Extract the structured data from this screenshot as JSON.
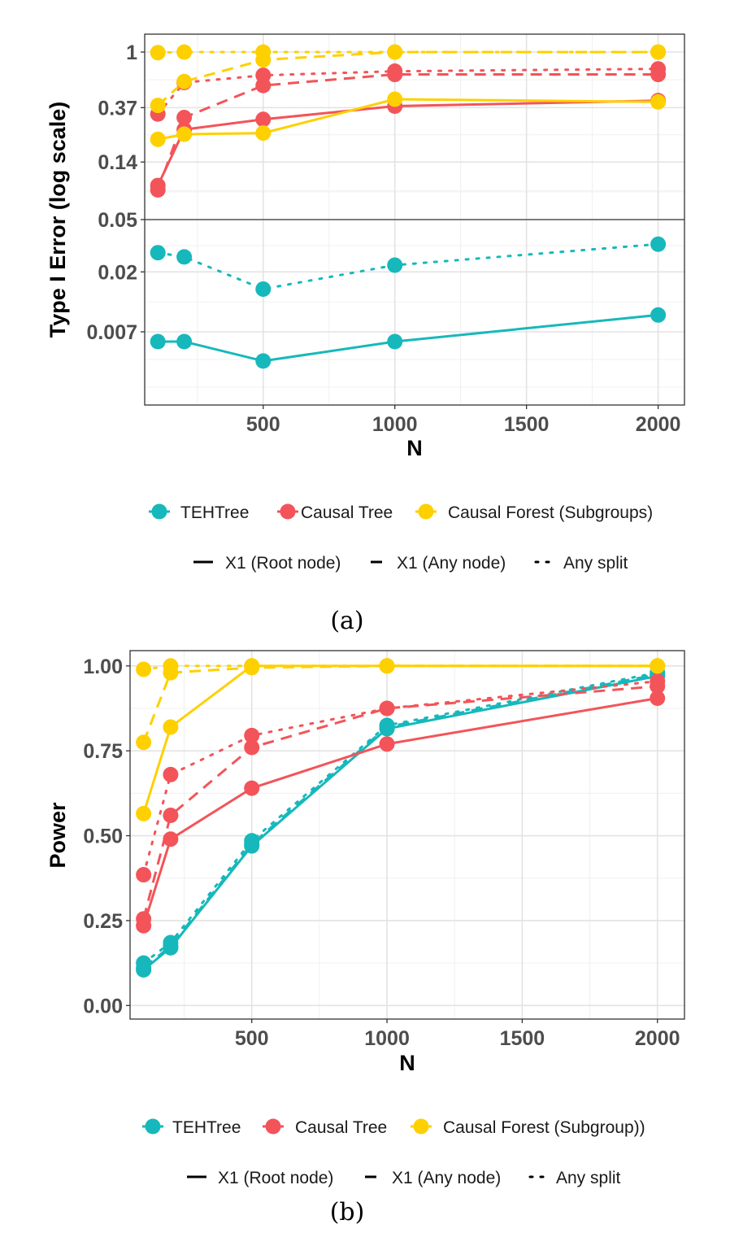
{
  "colors": {
    "TEHTree": "#17B8BC",
    "Causal Tree": "#F25459",
    "Causal Forest": "#FFD000"
  },
  "chart_data": [
    {
      "type": "line",
      "panel": "a",
      "caption": "(a)",
      "xlabel": "N",
      "ylabel": "Type I Error (log scale)",
      "y_scale": "log",
      "xlim": [
        50,
        2100
      ],
      "x_ticks": [
        500,
        1000,
        1500,
        2000
      ],
      "x_tick_labels": [
        "500",
        "1000",
        "1500",
        "2000"
      ],
      "y_ticks": [
        1,
        0.37,
        0.14,
        0.05,
        0.02,
        0.007
      ],
      "y_tick_labels": [
        "1",
        "0.37",
        "0.14",
        "0.05",
        "0.02",
        "0.007"
      ],
      "y_break": 0.05,
      "color_legend": [
        {
          "label": "TEHTree",
          "color_key": "TEHTree"
        },
        {
          "label": "Causal Tree",
          "color_key": "Causal Tree"
        },
        {
          "label": "Causal Forest (Subgroups)",
          "color_key": "Causal Forest"
        }
      ],
      "linetype_legend": [
        {
          "label": "X1 (Root node)",
          "style": "solid"
        },
        {
          "label": "X1 (Any node)",
          "style": "dashed"
        },
        {
          "label": "Any split",
          "style": "dotted"
        }
      ],
      "series": [
        {
          "method": "TEHTree",
          "style": "solid",
          "x": [
            100,
            200,
            500,
            1000,
            2000
          ],
          "y": [
            0.0059,
            0.0059,
            0.0042,
            0.0059,
            0.0094
          ]
        },
        {
          "method": "TEHTree",
          "style": "dotted",
          "x": [
            100,
            200,
            500,
            1000,
            2000
          ],
          "y": [
            0.028,
            0.026,
            0.0148,
            0.0225,
            0.0325
          ]
        },
        {
          "method": "Causal Tree",
          "style": "solid",
          "x": [
            100,
            200,
            500,
            1000,
            2000
          ],
          "y": [
            0.092,
            0.25,
            0.3,
            0.38,
            0.42
          ]
        },
        {
          "method": "Causal Tree",
          "style": "dashed",
          "x": [
            100,
            200,
            500,
            1000,
            2000
          ],
          "y": [
            0.085,
            0.31,
            0.55,
            0.67,
            0.67
          ]
        },
        {
          "method": "Causal Tree",
          "style": "dotted",
          "x": [
            100,
            200,
            500,
            1000,
            2000
          ],
          "y": [
            0.33,
            0.58,
            0.66,
            0.71,
            0.74
          ]
        },
        {
          "method": "Causal Forest",
          "style": "solid",
          "x": [
            100,
            200,
            500,
            1000,
            2000
          ],
          "y": [
            0.21,
            0.23,
            0.235,
            0.43,
            0.41
          ]
        },
        {
          "method": "Causal Forest",
          "style": "dashed",
          "x": [
            100,
            200,
            500,
            1000,
            2000
          ],
          "y": [
            0.385,
            0.59,
            0.87,
            1.0,
            1.0
          ]
        },
        {
          "method": "Causal Forest",
          "style": "dotted",
          "x": [
            100,
            200,
            500,
            1000,
            2000
          ],
          "y": [
            0.99,
            1.0,
            1.0,
            1.0,
            1.0
          ]
        }
      ]
    },
    {
      "type": "line",
      "panel": "b",
      "caption": "(b)",
      "xlabel": "N",
      "ylabel": "Power",
      "y_scale": "linear",
      "xlim": [
        50,
        2100
      ],
      "ylim": [
        -0.04,
        1.045
      ],
      "x_ticks": [
        500,
        1000,
        1500,
        2000
      ],
      "x_tick_labels": [
        "500",
        "1000",
        "1500",
        "2000"
      ],
      "y_ticks": [
        0,
        0.25,
        0.5,
        0.75,
        1
      ],
      "y_tick_labels": [
        "0.00",
        "0.25",
        "0.50",
        "0.75",
        "1.00"
      ],
      "color_legend": [
        {
          "label": "TEHTree",
          "color_key": "TEHTree"
        },
        {
          "label": "Causal Tree",
          "color_key": "Causal Tree"
        },
        {
          "label": "Causal Forest (Subgroup))",
          "color_key": "Causal Forest"
        }
      ],
      "linetype_legend": [
        {
          "label": "X1 (Root node)",
          "style": "solid"
        },
        {
          "label": "X1 (Any node)",
          "style": "dashed"
        },
        {
          "label": "Any split",
          "style": "dotted"
        }
      ],
      "series": [
        {
          "method": "TEHTree",
          "style": "solid",
          "x": [
            100,
            200,
            500,
            1000,
            2000
          ],
          "y": [
            0.105,
            0.17,
            0.47,
            0.815,
            0.97
          ]
        },
        {
          "method": "TEHTree",
          "style": "dashed",
          "x": [
            100,
            200,
            500,
            1000,
            2000
          ],
          "y": [
            0.11,
            0.175,
            0.475,
            0.82,
            0.975
          ]
        },
        {
          "method": "TEHTree",
          "style": "dotted",
          "x": [
            100,
            200,
            500,
            1000,
            2000
          ],
          "y": [
            0.125,
            0.185,
            0.485,
            0.825,
            0.98
          ]
        },
        {
          "method": "Causal Tree",
          "style": "solid",
          "x": [
            100,
            200,
            500,
            1000,
            2000
          ],
          "y": [
            0.235,
            0.49,
            0.64,
            0.77,
            0.905
          ]
        },
        {
          "method": "Causal Tree",
          "style": "dashed",
          "x": [
            100,
            200,
            500,
            1000,
            2000
          ],
          "y": [
            0.255,
            0.56,
            0.76,
            0.875,
            0.94
          ]
        },
        {
          "method": "Causal Tree",
          "style": "dotted",
          "x": [
            100,
            200,
            500,
            1000,
            2000
          ],
          "y": [
            0.385,
            0.68,
            0.795,
            0.875,
            0.955
          ]
        },
        {
          "method": "Causal Forest",
          "style": "solid",
          "x": [
            100,
            200,
            500,
            1000,
            2000
          ],
          "y": [
            0.565,
            0.82,
            1.0,
            1.0,
            1.0
          ]
        },
        {
          "method": "Causal Forest",
          "style": "dashed",
          "x": [
            100,
            200,
            500,
            1000,
            2000
          ],
          "y": [
            0.775,
            0.98,
            0.995,
            1.0,
            1.0
          ]
        },
        {
          "method": "Causal Forest",
          "style": "dotted",
          "x": [
            100,
            200,
            500,
            1000,
            2000
          ],
          "y": [
            0.99,
            1.0,
            1.0,
            1.0,
            1.0
          ]
        }
      ]
    }
  ]
}
